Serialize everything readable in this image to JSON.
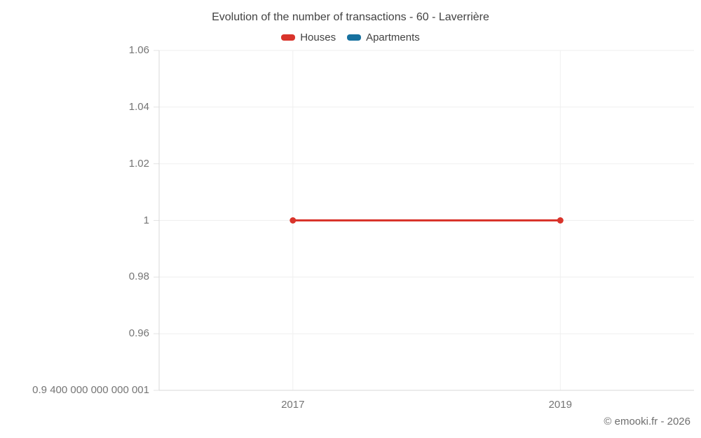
{
  "header": {
    "title": "Evolution of the number of transactions - 60 - Laverrière"
  },
  "footer": {
    "copyright": "© emooki.fr - 2026"
  },
  "chart_data": {
    "type": "line",
    "title": "Evolution of the number of transactions - 60 - Laverrière",
    "xlabel": "",
    "ylabel": "",
    "grid": true,
    "legend_position": "top",
    "xlim": [
      2016,
      2020
    ],
    "ylim": [
      0.94,
      1.06
    ],
    "series": [
      {
        "name": "Houses",
        "color": "#d9342b",
        "x": [
          2017,
          2019
        ],
        "values": [
          1,
          1
        ]
      },
      {
        "name": "Apartments",
        "color": "#17719f",
        "x": [],
        "values": []
      }
    ],
    "x_ticks": [
      {
        "value": 2017,
        "label": "2017"
      },
      {
        "value": 2019,
        "label": "2019"
      }
    ],
    "y_ticks": [
      {
        "value": 1.06,
        "label": "1.06"
      },
      {
        "value": 1.04,
        "label": "1.04"
      },
      {
        "value": 1.02,
        "label": "1.02"
      },
      {
        "value": 1.0,
        "label": "1"
      },
      {
        "value": 0.98,
        "label": "0.98"
      },
      {
        "value": 0.96,
        "label": "0.96"
      },
      {
        "value": 0.94,
        "label": "0.9 400 000 000 000 001"
      }
    ]
  }
}
